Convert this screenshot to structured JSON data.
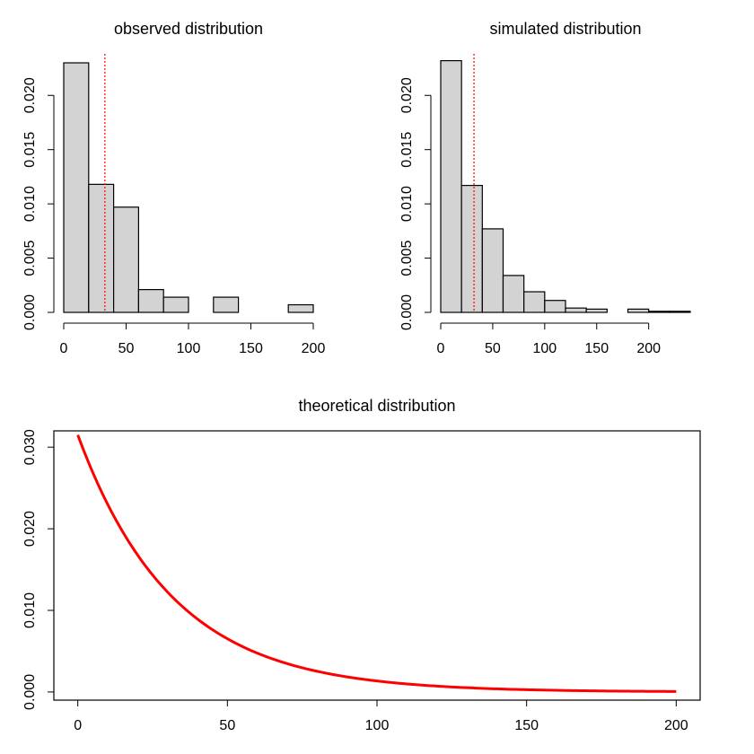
{
  "chart_data": [
    {
      "type": "bar",
      "title": "observed distribution",
      "xlabel": "",
      "ylabel": "",
      "bin_edges": [
        0,
        20,
        40,
        60,
        80,
        100,
        120,
        140,
        160,
        180,
        200
      ],
      "values": [
        0.023,
        0.0118,
        0.0097,
        0.0021,
        0.0014,
        0.0,
        0.0014,
        0.0,
        0.0,
        0.0007
      ],
      "xlim": [
        0,
        200
      ],
      "ylim": [
        0,
        0.023
      ],
      "x_ticks": [
        0,
        50,
        100,
        150,
        200
      ],
      "y_ticks": [
        0.0,
        0.005,
        0.01,
        0.015,
        0.02
      ],
      "y_tick_labels": [
        "0.000",
        "0.005",
        "0.010",
        "0.015",
        "0.020"
      ],
      "reference_line": {
        "x": 33,
        "color": "#ff0000",
        "style": "dotted"
      },
      "bar_fill": "#d3d3d3",
      "bar_stroke": "#000000"
    },
    {
      "type": "bar",
      "title": "simulated distribution",
      "xlabel": "",
      "ylabel": "",
      "bin_edges": [
        0,
        20,
        40,
        60,
        80,
        100,
        120,
        140,
        160,
        180,
        200,
        220,
        240
      ],
      "values": [
        0.0232,
        0.0117,
        0.0077,
        0.0034,
        0.0019,
        0.0011,
        0.0004,
        0.0003,
        0.0,
        0.0003,
        0.0001,
        0.0001
      ],
      "xlim": [
        0,
        240
      ],
      "ylim": [
        0,
        0.023
      ],
      "x_ticks": [
        0,
        50,
        100,
        150,
        200
      ],
      "y_ticks": [
        0.0,
        0.005,
        0.01,
        0.015,
        0.02
      ],
      "y_tick_labels": [
        "0.000",
        "0.005",
        "0.010",
        "0.015",
        "0.020"
      ],
      "reference_line": {
        "x": 32,
        "color": "#ff0000",
        "style": "dotted"
      },
      "bar_fill": "#d3d3d3",
      "bar_stroke": "#000000"
    },
    {
      "type": "line",
      "title": "theoretical distribution",
      "xlabel": "",
      "ylabel": "",
      "function": "exponential density",
      "rate": 0.0315,
      "x_range": [
        0,
        200
      ],
      "xlim": [
        -8,
        208
      ],
      "ylim": [
        -0.001,
        0.032
      ],
      "x_ticks": [
        0,
        50,
        100,
        150,
        200
      ],
      "y_ticks": [
        0.0,
        0.01,
        0.02,
        0.03
      ],
      "y_tick_labels": [
        "0.000",
        "0.010",
        "0.020",
        "0.030"
      ],
      "line_color": "#ff0000",
      "frame": true
    }
  ]
}
